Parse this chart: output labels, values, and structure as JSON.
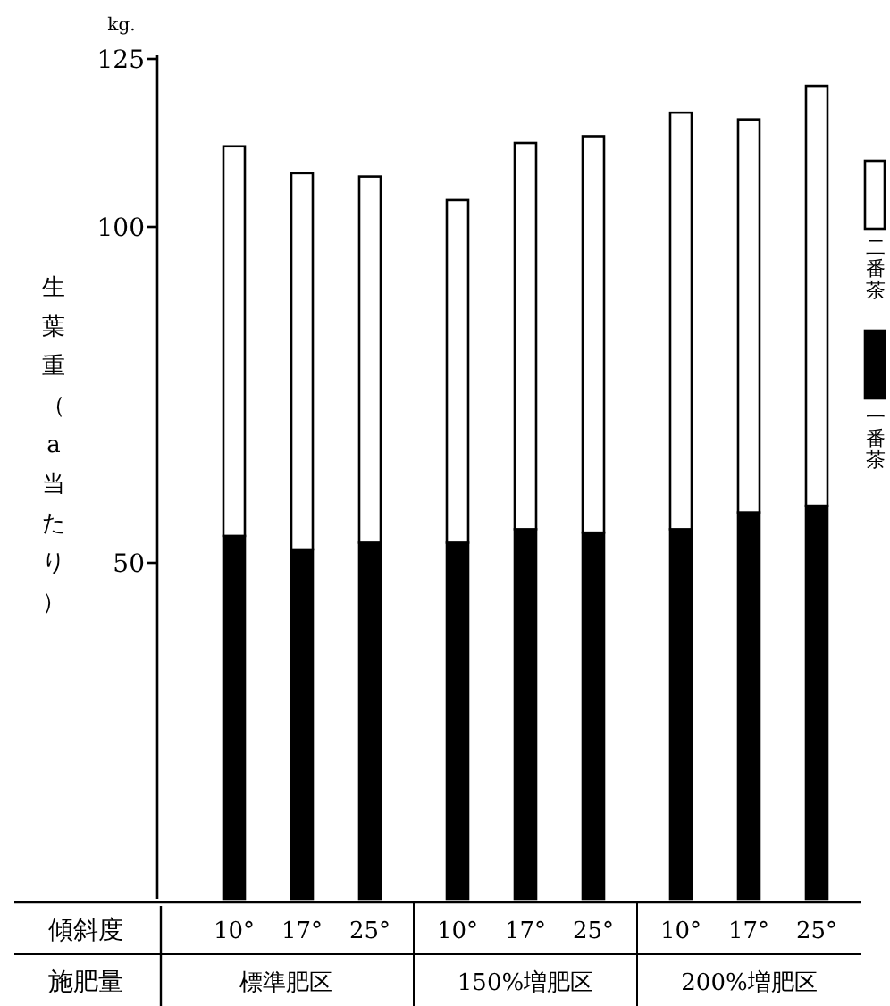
{
  "chart_data": {
    "type": "bar",
    "stacked": true,
    "ylabel": "生葉重（a当たり）",
    "categories": [
      "10°",
      "17°",
      "25°",
      "10°",
      "17°",
      "25°",
      "10°",
      "17°",
      "25°"
    ],
    "series": [
      {
        "name": "一番茶",
        "color": "#000000",
        "values": [
          54,
          52,
          53,
          53,
          55,
          54.5,
          55,
          57.5,
          58.5
        ]
      },
      {
        "name": "二番茶",
        "color": "#ffffff",
        "values": [
          58,
          56,
          54.5,
          51,
          57.5,
          59,
          62,
          58.5,
          62.5
        ]
      }
    ],
    "ylim": [
      0,
      125
    ],
    "yticks": [
      50,
      100,
      125
    ],
    "legend": "right",
    "annotations": [
      "kg.",
      "傾斜度",
      "施肥量",
      "標準肥区",
      "150%増肥区",
      "200%増肥区"
    ]
  }
}
